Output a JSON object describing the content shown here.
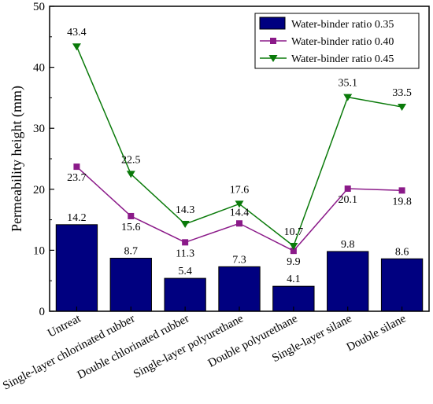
{
  "chart_data": {
    "type": "bar+line",
    "title": "",
    "ylabel": "Permeability height (mm)",
    "xlabel": "",
    "ylim": [
      0,
      50
    ],
    "yticks": [
      0,
      10,
      20,
      30,
      40,
      50
    ],
    "grid": false,
    "legend_position": "top-right",
    "categories": [
      "Untreat",
      "Single-layer chlorinated rubber",
      "Double chlorinated rubber",
      "Single-layer polyurethane",
      "Double polyurethane",
      "Single-layer silane",
      "Double silane"
    ],
    "series": [
      {
        "name": "Water-binder ratio 0.35",
        "type": "bar",
        "color": "#000080",
        "values": [
          14.2,
          8.7,
          5.4,
          7.3,
          4.1,
          9.8,
          8.6
        ],
        "labels": [
          "14.2",
          "8.7",
          "5.4",
          "7.3",
          "4.1",
          "9.8",
          "8.6"
        ]
      },
      {
        "name": "Water-binder ratio 0.40",
        "type": "line",
        "marker": "square",
        "color": "#8B1A89",
        "values": [
          23.7,
          15.6,
          11.3,
          14.4,
          9.9,
          20.1,
          19.8
        ],
        "labels": [
          "23.7",
          "15.6",
          "11.3",
          "14.4",
          "9.9",
          "20.1",
          "19.8"
        ]
      },
      {
        "name": "Water-binder ratio 0.45",
        "type": "line",
        "marker": "triangle-down",
        "color": "#0A7A0A",
        "values": [
          43.4,
          22.5,
          14.3,
          17.6,
          10.7,
          35.1,
          33.5
        ],
        "labels": [
          "43.4",
          "22.5",
          "14.3",
          "17.6",
          "10.7",
          "35.1",
          "33.5"
        ]
      }
    ]
  }
}
